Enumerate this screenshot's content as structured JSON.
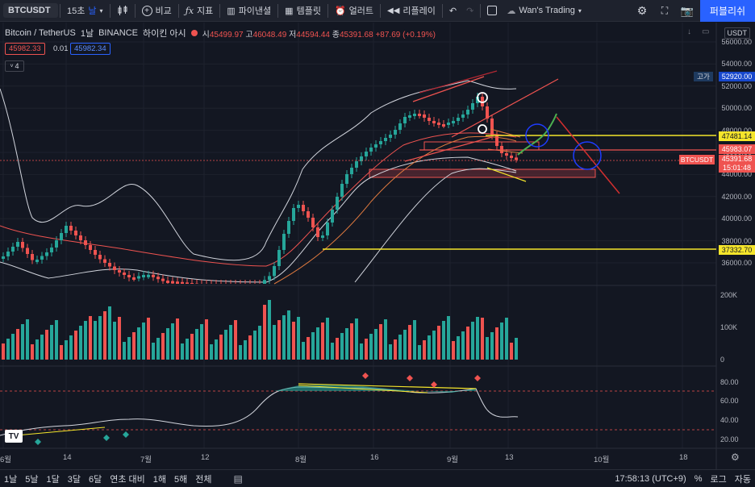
{
  "toolbar": {
    "symbol": "BTCUSDT",
    "interval": "15초",
    "interval_unit": "날",
    "compare": "비교",
    "indicators": "지표",
    "financials": "파이낸셜",
    "templates": "템플릿",
    "alert": "얼러트",
    "replay": "리플레이",
    "layout_name": "Wan's Trading",
    "publish": "퍼블리쉬"
  },
  "legend": {
    "name": "Bitcoin / TetherUS",
    "timeframe": "1날",
    "exchange": "BINANCE",
    "extra": "하이킨 아시",
    "open_label": "시",
    "open": "45499.97",
    "high_label": "고",
    "high": "46048.49",
    "low_label": "저",
    "low": "44594.44",
    "close_label": "종",
    "close": "45391.68",
    "change": "+87.69 (+0.19%)",
    "sell": "45982.33",
    "spread": "0.01",
    "buy": "45982.34",
    "collapsed_count": "4"
  },
  "price_axis": {
    "currency": "USDT",
    "labels": [
      "56000.00",
      "54000.00",
      "52000.00",
      "50000.00",
      "48000.00",
      "46000.00",
      "44000.00",
      "42000.00",
      "40000.00",
      "38000.00",
      "36000.00"
    ],
    "high_tag_label": "고가",
    "high_tag": "52920.00",
    "line1": "47481.14",
    "line2": "45983.07",
    "symbol_tag": "BTCUSDT",
    "last_price": "45391.68",
    "countdown": "15:01:48",
    "support": "37332.70"
  },
  "volume_axis": [
    "200K",
    "100K",
    "0"
  ],
  "rsi_axis": [
    "80.00",
    "60.00",
    "40.00",
    "20.00"
  ],
  "time_axis": [
    "6월",
    "14",
    "7월",
    "12",
    "8월",
    "16",
    "9월",
    "13",
    "10월",
    "18"
  ],
  "bottom": {
    "ranges": [
      "1날",
      "5날",
      "1달",
      "3달",
      "6달",
      "연초 대비",
      "1해",
      "5해",
      "전체"
    ],
    "clock": "17:58:13 (UTC+9)",
    "percent": "%",
    "log": "로그",
    "auto": "자동"
  },
  "colors": {
    "up": "#26a69a",
    "down": "#ef5350",
    "accent": "#2962ff",
    "yellow": "#f5e52b"
  }
}
